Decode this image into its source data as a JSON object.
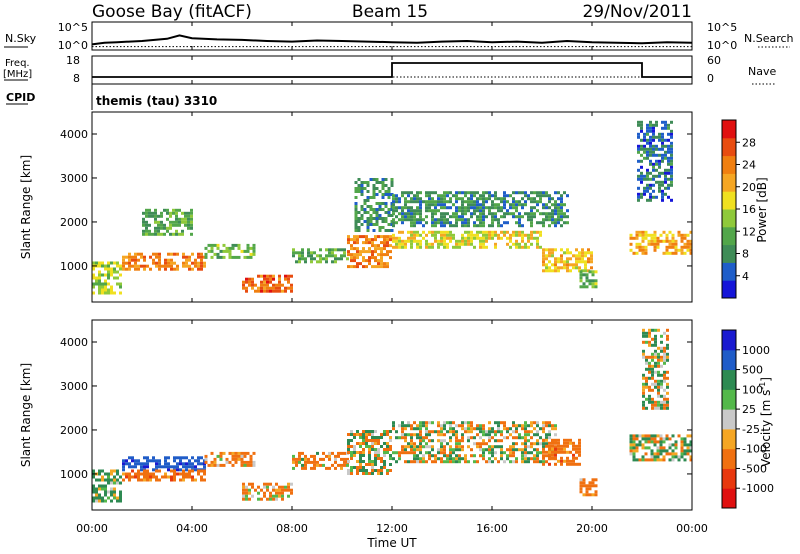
{
  "header": {
    "station": "Goose Bay (fitACF)",
    "beam": "Beam 15",
    "date": "29/Nov/2011"
  },
  "noise_panel": {
    "left_label": "N.Sky",
    "left_ticks": [
      "10^5",
      "10^0"
    ],
    "right_ticks": [
      "10^5",
      "10^0"
    ],
    "right_label": "N.Search"
  },
  "freq_panel": {
    "left_label_1": "Freq.",
    "left_label_2": "[MHz]",
    "left_ticks": [
      "18",
      "8"
    ],
    "right_ticks": [
      "60",
      "0"
    ],
    "right_label": "Nave",
    "cpid_label": "CPID",
    "cpid_value": "themis (tau) 3310"
  },
  "colors": {
    "power_scale": [
      "#1515d8",
      "#1f5ec9",
      "#3f8c57",
      "#52a64a",
      "#8fc93a",
      "#f0e020",
      "#f5a623",
      "#f07f10",
      "#e84c10",
      "#e01010"
    ],
    "velocity_scale": [
      "#1a1ad0",
      "#1f5cc8",
      "#2d8a52",
      "#54b84a",
      "#c9c9c9",
      "#f5a623",
      "#f07010",
      "#e8380e",
      "#e01010"
    ]
  },
  "chart_data": [
    {
      "type": "line",
      "name": "noise-time-series",
      "x_unit": "hours UT",
      "ylim_log10": [
        0,
        5
      ],
      "series": [
        {
          "name": "N.Sky",
          "x": [
            0,
            0.5,
            1,
            2,
            3,
            3.5,
            4,
            5,
            6,
            7,
            8,
            9,
            10,
            11,
            12,
            13,
            14,
            15,
            16,
            17,
            18,
            19,
            20,
            21,
            22,
            23,
            24
          ],
          "y": [
            1.0,
            1.3,
            1.4,
            1.6,
            2.0,
            2.6,
            2.1,
            1.9,
            1.8,
            1.6,
            1.5,
            1.7,
            1.6,
            1.5,
            1.4,
            1.3,
            1.5,
            1.6,
            1.4,
            1.5,
            1.3,
            1.6,
            1.4,
            1.3,
            1.2,
            1.4,
            1.3
          ]
        },
        {
          "name": "N.Search",
          "x": [
            0,
            24
          ],
          "y": [
            0.6,
            0.6
          ]
        }
      ]
    },
    {
      "type": "line",
      "name": "frequency-and-nave",
      "x_unit": "hours UT",
      "ylim_left": [
        8,
        18
      ],
      "ylim_right": [
        0,
        60
      ],
      "series": [
        {
          "name": "Freq.",
          "x": [
            0,
            12,
            12,
            22,
            22,
            24
          ],
          "y": [
            10.5,
            10.5,
            15.5,
            15.5,
            10.5,
            10.5
          ]
        },
        {
          "name": "Nave",
          "x": [
            0,
            24
          ],
          "y": [
            15,
            15
          ]
        }
      ]
    },
    {
      "type": "heatmap",
      "name": "power",
      "xlim": [
        0,
        24
      ],
      "ylim": [
        180,
        4500
      ],
      "xticks": [
        "00:00",
        "04:00",
        "08:00",
        "12:00",
        "16:00",
        "20:00",
        "00:00"
      ],
      "yticks": [
        "1000",
        "2000",
        "3000",
        "4000"
      ],
      "ylabel": "Slant Range [km]",
      "colorbar_label": "Power [dB]",
      "colorbar_ticks": [
        "28",
        "24",
        "20",
        "16",
        "12",
        "8",
        "4"
      ],
      "clim": [
        0,
        30
      ],
      "regions": [
        {
          "t0": 0.0,
          "t1": 1.2,
          "r0": 400,
          "r1": 1100,
          "value": 14
        },
        {
          "t0": 1.2,
          "t1": 4.5,
          "r0": 900,
          "r1": 1300,
          "value": 22
        },
        {
          "t0": 2.0,
          "t1": 4.0,
          "r0": 1700,
          "r1": 2300,
          "value": 10
        },
        {
          "t0": 4.5,
          "t1": 6.5,
          "r0": 1200,
          "r1": 1500,
          "value": 12
        },
        {
          "t0": 6.0,
          "t1": 8.0,
          "r0": 400,
          "r1": 800,
          "value": 24
        },
        {
          "t0": 8.0,
          "t1": 10.2,
          "r0": 1100,
          "r1": 1400,
          "value": 10
        },
        {
          "t0": 10.2,
          "t1": 12.0,
          "r0": 1000,
          "r1": 1700,
          "value": 22
        },
        {
          "t0": 10.5,
          "t1": 12.0,
          "r0": 1800,
          "r1": 3000,
          "value": 8
        },
        {
          "t0": 12.0,
          "t1": 18.0,
          "r0": 1400,
          "r1": 1800,
          "value": 16
        },
        {
          "t0": 12.0,
          "t1": 19.0,
          "r0": 1900,
          "r1": 2700,
          "value": 8
        },
        {
          "t0": 18.0,
          "t1": 20.0,
          "r0": 900,
          "r1": 1400,
          "value": 18
        },
        {
          "t0": 19.5,
          "t1": 20.2,
          "r0": 500,
          "r1": 900,
          "value": 12
        },
        {
          "t0": 21.5,
          "t1": 24.0,
          "r0": 1300,
          "r1": 1800,
          "value": 20
        },
        {
          "t0": 21.8,
          "t1": 23.2,
          "r0": 2500,
          "r1": 4300,
          "value": 6
        }
      ]
    },
    {
      "type": "heatmap",
      "name": "velocity",
      "xlim": [
        0,
        24
      ],
      "ylim": [
        180,
        4500
      ],
      "xticks": [
        "00:00",
        "04:00",
        "08:00",
        "12:00",
        "16:00",
        "20:00",
        "00:00"
      ],
      "xlabel": "Time UT",
      "yticks": [
        "1000",
        "2000",
        "3000",
        "4000"
      ],
      "ylabel": "Slant Range [km]",
      "colorbar_label": "Velocity [m s-1]",
      "colorbar_ticks": [
        "1000",
        "500",
        "100",
        "25",
        "-25",
        "-100",
        "-500",
        "-1000"
      ],
      "clim": [
        -1000,
        1000
      ],
      "regions": [
        {
          "t0": 0.0,
          "t1": 1.2,
          "r0": 400,
          "r1": 1100,
          "value": 150
        },
        {
          "t0": 1.2,
          "t1": 4.5,
          "r0": 1100,
          "r1": 1400,
          "value": 800
        },
        {
          "t0": 1.2,
          "t1": 4.5,
          "r0": 850,
          "r1": 1100,
          "value": -300
        },
        {
          "t0": 4.5,
          "t1": 6.5,
          "r0": 1200,
          "r1": 1500,
          "value": -200
        },
        {
          "t0": 6.0,
          "t1": 8.0,
          "r0": 400,
          "r1": 800,
          "value": -150
        },
        {
          "t0": 8.0,
          "t1": 10.2,
          "r0": 1100,
          "r1": 1500,
          "value": -120
        },
        {
          "t0": 10.2,
          "t1": 12.0,
          "r0": 1000,
          "r1": 2000,
          "value": 0
        },
        {
          "t0": 12.0,
          "t1": 18.5,
          "r0": 1300,
          "r1": 2200,
          "value": 0
        },
        {
          "t0": 18.0,
          "t1": 19.5,
          "r0": 1200,
          "r1": 1800,
          "value": -300
        },
        {
          "t0": 19.5,
          "t1": 20.2,
          "r0": 500,
          "r1": 900,
          "value": -200
        },
        {
          "t0": 21.5,
          "t1": 24.0,
          "r0": 1300,
          "r1": 1900,
          "value": 0
        },
        {
          "t0": 22.0,
          "t1": 23.0,
          "r0": 2500,
          "r1": 4300,
          "value": 0
        }
      ]
    }
  ]
}
